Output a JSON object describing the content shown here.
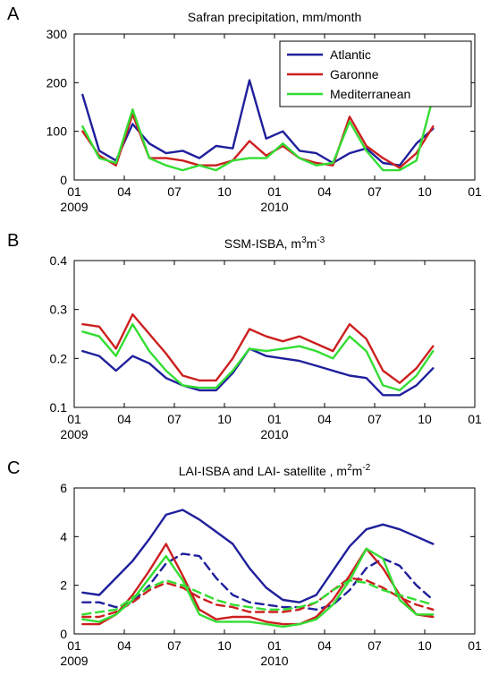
{
  "colors": {
    "atlantic": "#1f1f9c",
    "garonne": "#cc1f1f",
    "mediterranean": "#33dd33"
  },
  "chart_data": [
    {
      "type": "line",
      "panel_label": "A",
      "title": "Safran precipitation, mm/month",
      "title_sup": [],
      "x_ticks": [
        "01",
        "04",
        "07",
        "10",
        "01",
        "04",
        "07",
        "10",
        "01"
      ],
      "x_years": [
        "2009",
        "2010"
      ],
      "xlim": [
        0,
        24
      ],
      "ylim": [
        0,
        300
      ],
      "y_ticks": [
        "0",
        "100",
        "200",
        "300"
      ],
      "legend": {
        "placement": "top-right",
        "entries": [
          "Atlantic",
          "Garonne",
          "Mediterranean"
        ]
      },
      "x": [
        0.5,
        1.5,
        2.5,
        3.5,
        4.5,
        5.5,
        6.5,
        7.5,
        8.5,
        9.5,
        10.5,
        11.5,
        12.5,
        13.5,
        14.5,
        15.5,
        16.5,
        17.5,
        18.5,
        19.5,
        20.5,
        21.5
      ],
      "series": [
        {
          "name": "Atlantic",
          "style": "solid",
          "colorKey": "atlantic",
          "values": [
            175,
            60,
            40,
            115,
            75,
            55,
            60,
            45,
            70,
            65,
            205,
            85,
            100,
            60,
            55,
            35,
            55,
            65,
            35,
            30,
            75,
            105
          ]
        },
        {
          "name": "Garonne",
          "style": "solid",
          "colorKey": "garonne",
          "values": [
            100,
            50,
            30,
            135,
            45,
            45,
            40,
            30,
            30,
            40,
            80,
            50,
            70,
            45,
            35,
            30,
            130,
            70,
            45,
            25,
            55,
            110
          ]
        },
        {
          "name": "Mediterranean",
          "style": "solid",
          "colorKey": "mediterranean",
          "values": [
            110,
            45,
            35,
            145,
            45,
            30,
            20,
            30,
            20,
            40,
            45,
            45,
            75,
            45,
            30,
            35,
            120,
            60,
            20,
            20,
            40,
            170
          ]
        }
      ]
    },
    {
      "type": "line",
      "panel_label": "B",
      "title": "SSM-ISBA, m",
      "title_sup": [
        "3",
        "m",
        "-3"
      ],
      "x_ticks": [
        "01",
        "04",
        "07",
        "10",
        "01",
        "04",
        "07",
        "10",
        "01"
      ],
      "x_years": [
        "2009",
        "2010"
      ],
      "xlim": [
        0,
        24
      ],
      "ylim": [
        0.1,
        0.4
      ],
      "y_ticks": [
        "0.1",
        "0.2",
        "0.3",
        "0.4"
      ],
      "x": [
        0.5,
        1.5,
        2.5,
        3.5,
        4.5,
        5.5,
        6.5,
        7.5,
        8.5,
        9.5,
        10.5,
        11.5,
        12.5,
        13.5,
        14.5,
        15.5,
        16.5,
        17.5,
        18.5,
        19.5,
        20.5,
        21.5
      ],
      "series": [
        {
          "name": "Atlantic",
          "style": "solid",
          "colorKey": "atlantic",
          "values": [
            0.215,
            0.205,
            0.175,
            0.205,
            0.19,
            0.16,
            0.145,
            0.135,
            0.135,
            0.17,
            0.22,
            0.205,
            0.2,
            0.195,
            0.185,
            0.175,
            0.165,
            0.16,
            0.125,
            0.125,
            0.145,
            0.18
          ]
        },
        {
          "name": "Garonne",
          "style": "solid",
          "colorKey": "garonne",
          "values": [
            0.27,
            0.265,
            0.22,
            0.29,
            0.25,
            0.21,
            0.165,
            0.155,
            0.155,
            0.2,
            0.26,
            0.245,
            0.235,
            0.245,
            0.23,
            0.215,
            0.27,
            0.24,
            0.175,
            0.15,
            0.18,
            0.225
          ]
        },
        {
          "name": "Mediterranean",
          "style": "solid",
          "colorKey": "mediterranean",
          "values": [
            0.255,
            0.245,
            0.205,
            0.27,
            0.215,
            0.175,
            0.145,
            0.14,
            0.14,
            0.175,
            0.22,
            0.215,
            0.22,
            0.225,
            0.215,
            0.2,
            0.245,
            0.215,
            0.145,
            0.135,
            0.165,
            0.215
          ]
        }
      ]
    },
    {
      "type": "line",
      "panel_label": "C",
      "title": "LAI-ISBA and LAI- satellite , m",
      "title_sup": [
        "2",
        "m",
        "-2"
      ],
      "x_ticks": [
        "01",
        "04",
        "07",
        "10",
        "01",
        "04",
        "07",
        "10",
        "01"
      ],
      "x_years": [
        "2009",
        "2010"
      ],
      "xlim": [
        0,
        24
      ],
      "ylim": [
        0,
        6
      ],
      "y_ticks": [
        "0",
        "2",
        "4",
        "6"
      ],
      "x": [
        0.5,
        1.5,
        2.5,
        3.5,
        4.5,
        5.5,
        6.5,
        7.5,
        8.5,
        9.5,
        10.5,
        11.5,
        12.5,
        13.5,
        14.5,
        15.5,
        16.5,
        17.5,
        18.5,
        19.5,
        20.5,
        21.5
      ],
      "series": [
        {
          "name": "Atlantic",
          "style": "solid",
          "colorKey": "atlantic",
          "values": [
            1.7,
            1.6,
            2.3,
            3.0,
            3.9,
            4.9,
            5.1,
            4.7,
            4.2,
            3.7,
            2.7,
            1.9,
            1.4,
            1.3,
            1.6,
            2.6,
            3.6,
            4.3,
            4.5,
            4.3,
            4.0,
            3.7
          ]
        },
        {
          "name": "Atlantic satellite",
          "style": "dashed",
          "colorKey": "atlantic",
          "values": [
            1.3,
            1.3,
            1.1,
            1.3,
            2.0,
            2.9,
            3.3,
            3.2,
            2.3,
            1.6,
            1.3,
            1.2,
            1.1,
            1.1,
            1.0,
            1.2,
            1.8,
            2.7,
            3.1,
            2.8,
            2.0,
            1.4
          ]
        },
        {
          "name": "Garonne",
          "style": "solid",
          "colorKey": "garonne",
          "values": [
            0.4,
            0.4,
            0.8,
            1.6,
            2.6,
            3.7,
            2.4,
            1.0,
            0.6,
            0.7,
            0.7,
            0.5,
            0.4,
            0.4,
            0.7,
            1.4,
            2.4,
            3.5,
            2.7,
            1.6,
            0.8,
            0.7
          ]
        },
        {
          "name": "Garonne satellite",
          "style": "dashed",
          "colorKey": "garonne",
          "values": [
            0.7,
            0.7,
            0.9,
            1.3,
            1.8,
            2.1,
            1.9,
            1.5,
            1.2,
            1.1,
            0.9,
            0.9,
            0.9,
            1.0,
            1.3,
            1.8,
            2.3,
            2.2,
            1.9,
            1.5,
            1.2,
            1.0
          ]
        },
        {
          "name": "Mediterranean",
          "style": "solid",
          "colorKey": "mediterranean",
          "values": [
            0.6,
            0.5,
            0.8,
            1.4,
            2.3,
            3.2,
            2.2,
            0.8,
            0.5,
            0.5,
            0.5,
            0.4,
            0.3,
            0.4,
            0.6,
            1.2,
            2.2,
            3.5,
            3.1,
            1.4,
            0.8,
            0.8
          ]
        },
        {
          "name": "Mediterranean satellite",
          "style": "dashed",
          "colorKey": "mediterranean",
          "values": [
            0.8,
            0.9,
            1.0,
            1.5,
            1.9,
            2.2,
            2.0,
            1.7,
            1.4,
            1.2,
            1.1,
            1.0,
            1.0,
            1.1,
            1.3,
            1.8,
            2.2,
            2.1,
            1.8,
            1.6,
            1.4,
            1.2
          ]
        }
      ]
    }
  ]
}
